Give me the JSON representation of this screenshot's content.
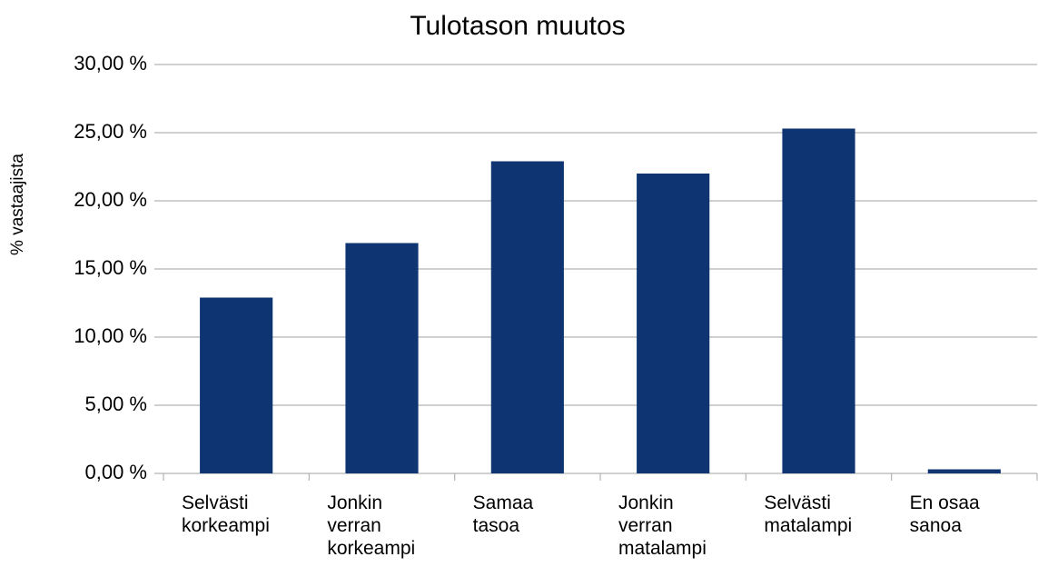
{
  "chart_data": {
    "type": "bar",
    "title": "Tulotason muutos",
    "y_label": "% vastaajista",
    "categories": [
      "Selvästi korkeampi",
      "Jonkin verran korkeampi",
      "Samaa tasoa",
      "Jonkin verran matalampi",
      "Selvästi matalampi",
      "En osaa sanoa"
    ],
    "values": [
      12.9,
      16.9,
      22.9,
      22.0,
      25.3,
      0.3
    ],
    "color": "#0e3572",
    "ylim": [
      0,
      30
    ],
    "yticks": [
      {
        "value": 0,
        "label": "0,00 %"
      },
      {
        "value": 5,
        "label": "5,00 %"
      },
      {
        "value": 10,
        "label": "10,00 %"
      },
      {
        "value": 15,
        "label": "15,00 %"
      },
      {
        "value": 20,
        "label": "20,00 %"
      },
      {
        "value": 25,
        "label": "25,00 %"
      },
      {
        "value": 30,
        "label": "30,00 %"
      }
    ],
    "grid": true
  }
}
